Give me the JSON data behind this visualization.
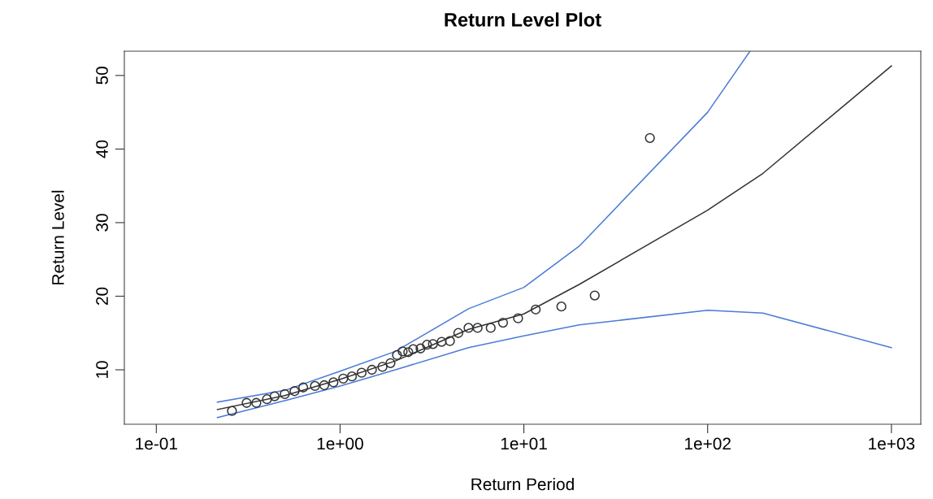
{
  "chart_data": {
    "type": "line",
    "title": "Return Level Plot",
    "xlabel": "Return Period",
    "ylabel": "Return Level",
    "log": "x",
    "grid": false,
    "xlim": [
      0.067,
      1445
    ],
    "ylim": [
      2.6,
      53.3
    ],
    "xticks": [
      {
        "value": 0.1,
        "label": "1e-01"
      },
      {
        "value": 1,
        "label": "1e+00"
      },
      {
        "value": 10,
        "label": "1e+01"
      },
      {
        "value": 100,
        "label": "1e+02"
      },
      {
        "value": 1000,
        "label": "1e+03"
      }
    ],
    "yticks": [
      10,
      20,
      30,
      40,
      50
    ],
    "series": [
      {
        "color": "#4a7bd8",
        "marker": "none",
        "x": [
          0.215,
          0.5,
          1,
          2,
          5,
          10,
          20,
          100,
          170
        ],
        "values": [
          5.6,
          7.2,
          9.8,
          12.5,
          18.3,
          21.2,
          26.8,
          45.0,
          53.3
        ]
      },
      {
        "color": "#333333",
        "marker": "none",
        "x": [
          0.215,
          0.5,
          1,
          2,
          5,
          10,
          20,
          100,
          200,
          1000
        ],
        "values": [
          4.6,
          6.5,
          8.7,
          11.2,
          15.5,
          17.6,
          21.6,
          31.7,
          36.7,
          51.3
        ]
      },
      {
        "color": "#4a7bd8",
        "marker": "none",
        "x": [
          0.215,
          0.5,
          1,
          2,
          5,
          10,
          20,
          100,
          200,
          1000
        ],
        "values": [
          3.5,
          5.8,
          7.8,
          10.0,
          13.0,
          14.6,
          16.1,
          18.1,
          17.7,
          13.0
        ]
      },
      {
        "type": "scatter",
        "color": "#333333",
        "marker": "circle",
        "x": [
          0.258,
          0.31,
          0.35,
          0.4,
          0.44,
          0.5,
          0.565,
          0.63,
          0.73,
          0.82,
          0.92,
          1.04,
          1.16,
          1.31,
          1.49,
          1.7,
          1.88,
          2.04,
          2.19,
          2.35,
          2.5,
          2.74,
          2.97,
          3.2,
          3.57,
          3.96,
          4.4,
          5.0,
          5.6,
          6.6,
          7.7,
          9.3,
          11.6,
          16,
          24.3,
          48.5
        ],
        "values": [
          4.4,
          5.5,
          5.5,
          6.0,
          6.4,
          6.7,
          7.1,
          7.6,
          7.8,
          7.9,
          8.3,
          8.8,
          9.1,
          9.6,
          10.0,
          10.4,
          10.9,
          12.0,
          12.5,
          12.4,
          12.8,
          12.9,
          13.4,
          13.5,
          13.8,
          13.9,
          15.0,
          15.7,
          15.7,
          15.7,
          16.4,
          17.0,
          18.2,
          18.6,
          20.1,
          41.5
        ]
      }
    ]
  }
}
